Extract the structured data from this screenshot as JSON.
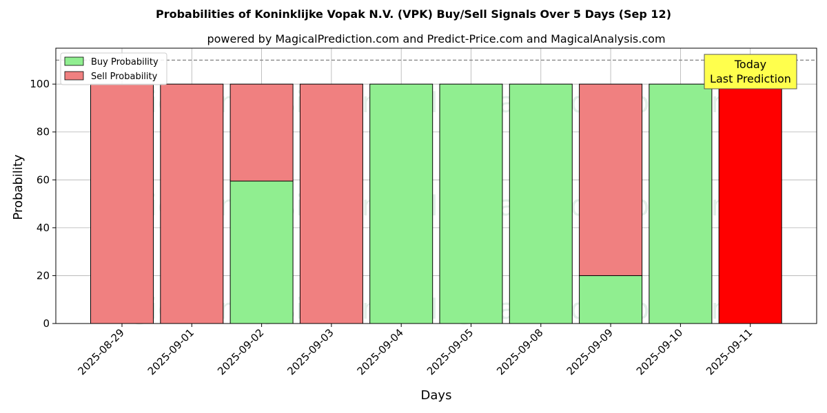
{
  "colors": {
    "buy": "#90ee90",
    "sell": "#f08080",
    "last_prediction": "#ff0000",
    "annotation_bg": "#ffff4d"
  },
  "chart_data": {
    "type": "bar",
    "stacked": true,
    "title": "Probabilities of Koninklijke Vopak N.V. (VPK) Buy/Sell Signals Over 5 Days (Sep 12)",
    "subtitle": "powered by MagicalPrediction.com and Predict-Price.com and MagicalAnalysis.com",
    "xlabel": "Days",
    "ylabel": "Probability",
    "ylim": [
      0,
      115
    ],
    "yticks": [
      0,
      20,
      40,
      60,
      80,
      100
    ],
    "grid": true,
    "legend_position": "top-left",
    "reference_line": 110,
    "categories": [
      "2025-08-29",
      "2025-09-01",
      "2025-09-02",
      "2025-09-03",
      "2025-09-04",
      "2025-09-05",
      "2025-09-08",
      "2025-09-09",
      "2025-09-10",
      "2025-09-11"
    ],
    "series": [
      {
        "name": "Buy Probability",
        "values": [
          0,
          0,
          59.5,
          0,
          100,
          100,
          100,
          20,
          100,
          0
        ]
      },
      {
        "name": "Sell Probability",
        "values": [
          100,
          100,
          40.5,
          100,
          0,
          0,
          0,
          80,
          0,
          100
        ]
      }
    ],
    "highlight_index": 9,
    "annotation": {
      "line1": "Today",
      "line2": "Last Prediction"
    },
    "watermarks": [
      "MagicalAnalysis.com",
      "MagicalPrediction.com"
    ]
  }
}
